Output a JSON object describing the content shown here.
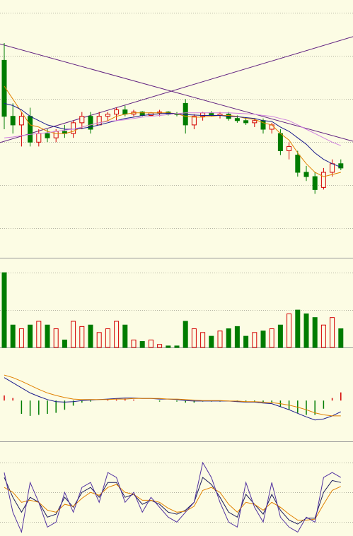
{
  "chart_data": [
    {
      "type": "candlestick",
      "ylim": [
        0.3,
        6.3
      ],
      "yticks": [
        1,
        2,
        3,
        4,
        5,
        6
      ],
      "grid": true,
      "up_color": "#d40000",
      "down_color": "#007c00",
      "open": [
        4.9,
        3.6,
        3.4,
        3.6,
        3.0,
        3.2,
        3.1,
        3.25,
        3.2,
        3.45,
        3.6,
        3.4,
        3.6,
        3.65,
        3.75,
        3.65,
        3.7,
        3.62,
        3.68,
        3.7,
        3.66,
        3.9,
        3.4,
        3.6,
        3.68,
        3.62,
        3.65,
        3.55,
        3.5,
        3.45,
        3.5,
        3.3,
        3.2,
        2.8,
        2.7,
        2.3,
        2.2,
        1.95,
        2.3,
        2.5
      ],
      "high": [
        5.3,
        3.9,
        3.7,
        3.8,
        3.3,
        3.3,
        3.3,
        3.4,
        3.5,
        3.7,
        3.7,
        3.7,
        3.7,
        3.8,
        3.85,
        3.75,
        3.72,
        3.7,
        3.75,
        3.72,
        3.7,
        4.0,
        3.65,
        3.7,
        3.72,
        3.7,
        3.7,
        3.62,
        3.58,
        3.55,
        3.55,
        3.45,
        3.3,
        3.0,
        2.8,
        2.45,
        2.3,
        2.4,
        2.6,
        2.6
      ],
      "low": [
        3.3,
        3.2,
        2.9,
        2.9,
        2.9,
        3.0,
        3.0,
        3.1,
        3.1,
        3.3,
        3.2,
        3.4,
        3.5,
        3.5,
        3.6,
        3.6,
        3.6,
        3.6,
        3.6,
        3.62,
        3.6,
        3.2,
        3.3,
        3.5,
        3.6,
        3.55,
        3.5,
        3.45,
        3.4,
        3.35,
        3.2,
        3.2,
        2.7,
        2.6,
        2.2,
        2.1,
        1.8,
        1.9,
        2.2,
        2.35
      ],
      "close": [
        3.6,
        3.4,
        3.6,
        3.0,
        3.2,
        3.1,
        3.25,
        3.2,
        3.45,
        3.6,
        3.3,
        3.6,
        3.65,
        3.75,
        3.65,
        3.7,
        3.62,
        3.68,
        3.7,
        3.66,
        3.64,
        3.4,
        3.6,
        3.68,
        3.62,
        3.65,
        3.55,
        3.5,
        3.45,
        3.5,
        3.3,
        3.4,
        2.8,
        2.9,
        2.3,
        2.2,
        1.9,
        2.3,
        2.5,
        2.4
      ],
      "series": [
        {
          "color": "#e08000",
          "values": [
            4.3,
            4.0,
            3.7,
            3.4,
            3.35,
            3.25,
            3.2,
            3.2,
            3.25,
            3.35,
            3.4,
            3.45,
            3.5,
            3.6,
            3.65,
            3.68,
            3.68,
            3.68,
            3.68,
            3.68,
            3.66,
            3.6,
            3.58,
            3.58,
            3.6,
            3.62,
            3.62,
            3.6,
            3.55,
            3.53,
            3.45,
            3.4,
            3.2,
            3.05,
            2.75,
            2.5,
            2.3,
            2.2,
            2.25,
            2.3
          ]
        },
        {
          "color": "#1a1a8c",
          "values": [
            3.9,
            3.85,
            3.75,
            3.6,
            3.5,
            3.4,
            3.35,
            3.3,
            3.3,
            3.32,
            3.35,
            3.4,
            3.45,
            3.5,
            3.55,
            3.58,
            3.62,
            3.64,
            3.66,
            3.67,
            3.66,
            3.64,
            3.63,
            3.62,
            3.62,
            3.62,
            3.6,
            3.59,
            3.57,
            3.55,
            3.5,
            3.48,
            3.35,
            3.25,
            3.1,
            2.95,
            2.75,
            2.6,
            2.5,
            2.42
          ]
        },
        {
          "color": "#d080e0",
          "values": [
            3.1,
            3.12,
            3.15,
            3.18,
            3.2,
            3.22,
            3.25,
            3.28,
            3.3,
            3.35,
            3.4,
            3.45,
            3.48,
            3.5,
            3.52,
            3.55,
            3.58,
            3.6,
            3.62,
            3.64,
            3.66,
            3.68,
            3.68,
            3.68,
            3.68,
            3.68,
            3.68,
            3.67,
            3.66,
            3.65,
            3.62,
            3.6,
            3.55,
            3.5,
            3.4,
            3.3,
            3.2,
            3.1,
            3.0,
            2.92
          ]
        }
      ],
      "trend_lines": [
        {
          "color": "#602080",
          "values": [
            5.28,
            3.02
          ]
        },
        {
          "color": "#602080",
          "values": [
            2.99,
            5.45
          ]
        }
      ]
    },
    {
      "type": "bar",
      "ylim": [
        0,
        120
      ],
      "yticks": [
        50,
        100
      ],
      "grid": true,
      "values": [
        100,
        30,
        25,
        30,
        35,
        30,
        25,
        10,
        35,
        28,
        30,
        20,
        25,
        35,
        30,
        10,
        8,
        10,
        4,
        2,
        2,
        35,
        25,
        20,
        15,
        22,
        25,
        28,
        15,
        20,
        22,
        25,
        30,
        45,
        50,
        45,
        40,
        30,
        40,
        25
      ]
    },
    {
      "type": "macd",
      "ylim": [
        -0.8,
        1.0
      ],
      "up_color": "#d40000",
      "down_color": "#007c00",
      "values": [
        0.1,
        0.05,
        -0.26,
        -0.3,
        -0.28,
        -0.26,
        -0.24,
        -0.18,
        -0.1,
        -0.04,
        -0.02,
        0,
        0.02,
        0.02,
        0.04,
        0.02,
        0,
        0,
        -0.02,
        0,
        -0.02,
        -0.04,
        -0.04,
        -0.02,
        -0.02,
        -0.02,
        0,
        -0.02,
        -0.02,
        -0.02,
        -0.04,
        -0.04,
        -0.12,
        -0.18,
        -0.24,
        -0.28,
        -0.28,
        -0.16,
        0.05,
        0.16
      ],
      "series": [
        {
          "color": "#1a1a8c",
          "values": [
            0.45,
            0.35,
            0.25,
            0.15,
            0.08,
            0.02,
            -0.02,
            -0.03,
            -0.02,
            0,
            0.01,
            0.02,
            0.03,
            0.04,
            0.05,
            0.05,
            0.04,
            0.04,
            0.03,
            0.03,
            0.02,
            0,
            -0.01,
            -0.01,
            -0.01,
            -0.01,
            -0.01,
            -0.02,
            -0.03,
            -0.03,
            -0.05,
            -0.06,
            -0.12,
            -0.18,
            -0.25,
            -0.32,
            -0.38,
            -0.36,
            -0.3,
            -0.22
          ]
        },
        {
          "color": "#e08000",
          "values": [
            0.5,
            0.45,
            0.38,
            0.3,
            0.22,
            0.15,
            0.1,
            0.06,
            0.03,
            0.02,
            0.02,
            0.02,
            0.02,
            0.03,
            0.03,
            0.04,
            0.04,
            0.04,
            0.04,
            0.03,
            0.03,
            0.02,
            0.01,
            0,
            0,
            0,
            -0.01,
            -0.01,
            -0.02,
            -0.02,
            -0.03,
            -0.04,
            -0.06,
            -0.09,
            -0.13,
            -0.18,
            -0.24,
            -0.28,
            -0.3,
            -0.3
          ]
        }
      ]
    },
    {
      "type": "line",
      "ylim": [
        6,
        100
      ],
      "yticks": [
        20,
        50,
        80
      ],
      "grid": true,
      "series": [
        {
          "color": "#1a1a5c",
          "values": [
            65,
            45,
            30,
            45,
            40,
            25,
            28,
            45,
            35,
            50,
            55,
            45,
            60,
            60,
            45,
            48,
            38,
            42,
            38,
            30,
            28,
            32,
            40,
            65,
            58,
            45,
            30,
            25,
            48,
            38,
            28,
            48,
            32,
            22,
            18,
            24,
            24,
            50,
            62,
            60
          ]
        },
        {
          "color": "#e08000",
          "values": [
            55,
            50,
            40,
            42,
            40,
            32,
            30,
            38,
            36,
            44,
            50,
            47,
            55,
            58,
            50,
            48,
            42,
            42,
            40,
            34,
            30,
            31,
            36,
            52,
            55,
            50,
            38,
            30,
            40,
            38,
            32,
            40,
            35,
            28,
            22,
            22,
            23,
            38,
            52,
            56
          ]
        },
        {
          "color": "#5030a0",
          "values": [
            70,
            30,
            10,
            60,
            40,
            15,
            20,
            50,
            30,
            55,
            60,
            40,
            70,
            65,
            40,
            50,
            30,
            45,
            35,
            25,
            20,
            30,
            40,
            80,
            65,
            40,
            20,
            15,
            60,
            35,
            20,
            60,
            25,
            15,
            10,
            25,
            20,
            65,
            70,
            65
          ]
        }
      ]
    }
  ]
}
